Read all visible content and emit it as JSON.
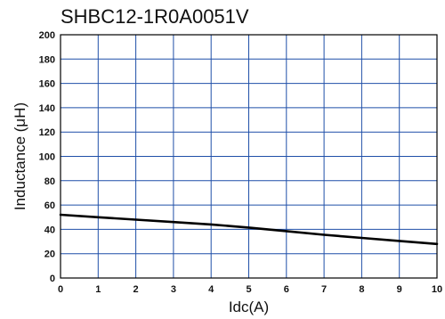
{
  "chart_data": {
    "type": "line",
    "title": "SHBC12-1R0A0051V",
    "xlabel": "Idc(A)",
    "ylabel": "Inductance (μH)",
    "xlim": [
      0,
      10
    ],
    "ylim": [
      0,
      200
    ],
    "x_ticks": [
      "0",
      "1",
      "2",
      "3",
      "4",
      "5",
      "6",
      "7",
      "8",
      "9",
      "10"
    ],
    "y_ticks": [
      "0",
      "20",
      "40",
      "60",
      "80",
      "100",
      "120",
      "140",
      "160",
      "180",
      "200"
    ],
    "grid": true,
    "legend": "none",
    "colors": {
      "grid": "#1f4fa8",
      "line": "#000000",
      "frame": "#000000"
    },
    "series": [
      {
        "x": [
          0,
          1,
          2,
          3,
          4,
          5,
          6,
          7,
          8,
          9,
          10
        ],
        "y": [
          52,
          50,
          48,
          46,
          44,
          41.5,
          38.5,
          35.5,
          33,
          30.5,
          28
        ]
      }
    ]
  }
}
